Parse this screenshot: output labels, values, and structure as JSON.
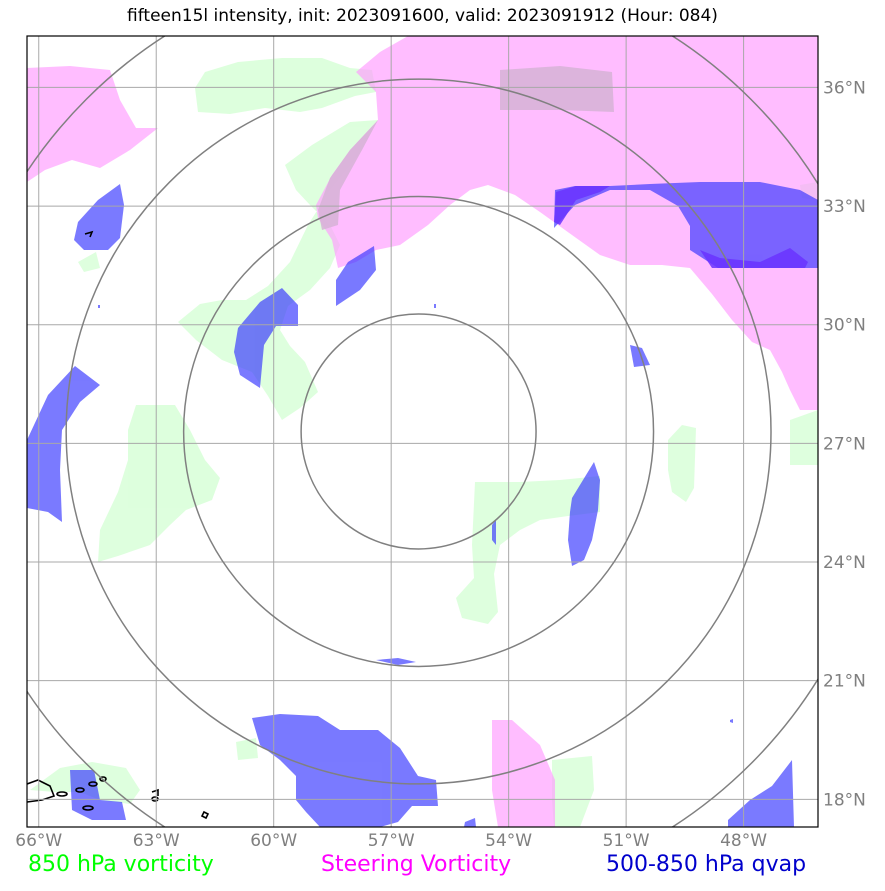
{
  "title": "fifteen15l intensity, init: 2023091600, valid: 2023091912 (Hour: 084)",
  "map": {
    "lon_range": [
      -66.3,
      -46.1
    ],
    "lat_range": [
      17.3,
      37.3
    ],
    "center": {
      "lon": -56.3,
      "lat": 27.3
    },
    "range_rings_deg": [
      3,
      6,
      9,
      12
    ],
    "gridlines": true,
    "lon_ticks": [
      {
        "value": -66,
        "label": "66°W"
      },
      {
        "value": -63,
        "label": "63°W"
      },
      {
        "value": -60,
        "label": "60°W"
      },
      {
        "value": -57,
        "label": "57°W"
      },
      {
        "value": -54,
        "label": "54°W"
      },
      {
        "value": -51,
        "label": "51°W"
      },
      {
        "value": -48,
        "label": "48°W"
      }
    ],
    "lat_ticks": [
      {
        "value": 36,
        "label": "36°N"
      },
      {
        "value": 33,
        "label": "33°N"
      },
      {
        "value": 30,
        "label": "30°N"
      },
      {
        "value": 27,
        "label": "27°N"
      },
      {
        "value": 24,
        "label": "24°N"
      },
      {
        "value": 21,
        "label": "21°N"
      },
      {
        "value": 18,
        "label": "18°N"
      }
    ]
  },
  "legend": [
    {
      "label": "850 hPa vorticity",
      "color": "#00ff00"
    },
    {
      "label": "Steering Vorticity",
      "color": "#ff00ff"
    },
    {
      "label": "500-850 hPa qvap",
      "color": "#0000cc"
    }
  ],
  "fills": {
    "vorticity_850": "#ccffcc",
    "steering": "#ff99ff",
    "qvap": "#3333ff"
  }
}
